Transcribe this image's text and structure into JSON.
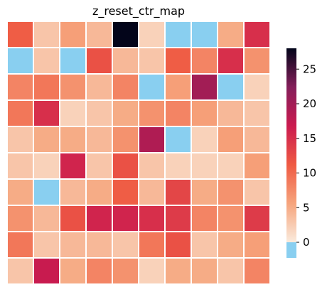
{
  "chart_data": {
    "type": "heatmap",
    "title": "z_reset_ctr_map",
    "xlabel": "",
    "ylabel": "",
    "color_range": [
      -1.5,
      28
    ],
    "colorbar_ticks": [
      0,
      5,
      10,
      15,
      20,
      25
    ],
    "below_color": "#89cff0",
    "legend_position": "right",
    "cell_border_color": "#ffffff",
    "rows": [
      [
        11,
        3,
        6,
        4,
        28,
        2,
        -1,
        -1,
        5,
        15
      ],
      [
        -1,
        3,
        -1,
        12,
        4,
        3,
        11,
        8,
        15,
        7
      ],
      [
        8,
        9,
        7,
        4,
        8,
        -1,
        6,
        20,
        -1,
        2
      ],
      [
        9,
        15,
        2,
        3,
        5,
        7,
        8,
        6,
        4,
        3
      ],
      [
        3,
        5,
        5,
        4,
        7,
        19,
        -1,
        2,
        6,
        4
      ],
      [
        3,
        2,
        16,
        3,
        12,
        3,
        2,
        2,
        2,
        6
      ],
      [
        5,
        -1,
        4,
        5,
        11,
        4,
        13,
        5,
        7,
        3
      ],
      [
        7,
        4,
        12,
        16,
        16,
        15,
        14,
        8,
        7,
        14
      ],
      [
        9,
        3,
        4,
        4,
        3,
        9,
        12,
        3,
        5,
        6
      ],
      [
        3,
        17,
        5,
        8,
        7,
        2,
        5,
        5,
        3,
        8
      ]
    ]
  }
}
